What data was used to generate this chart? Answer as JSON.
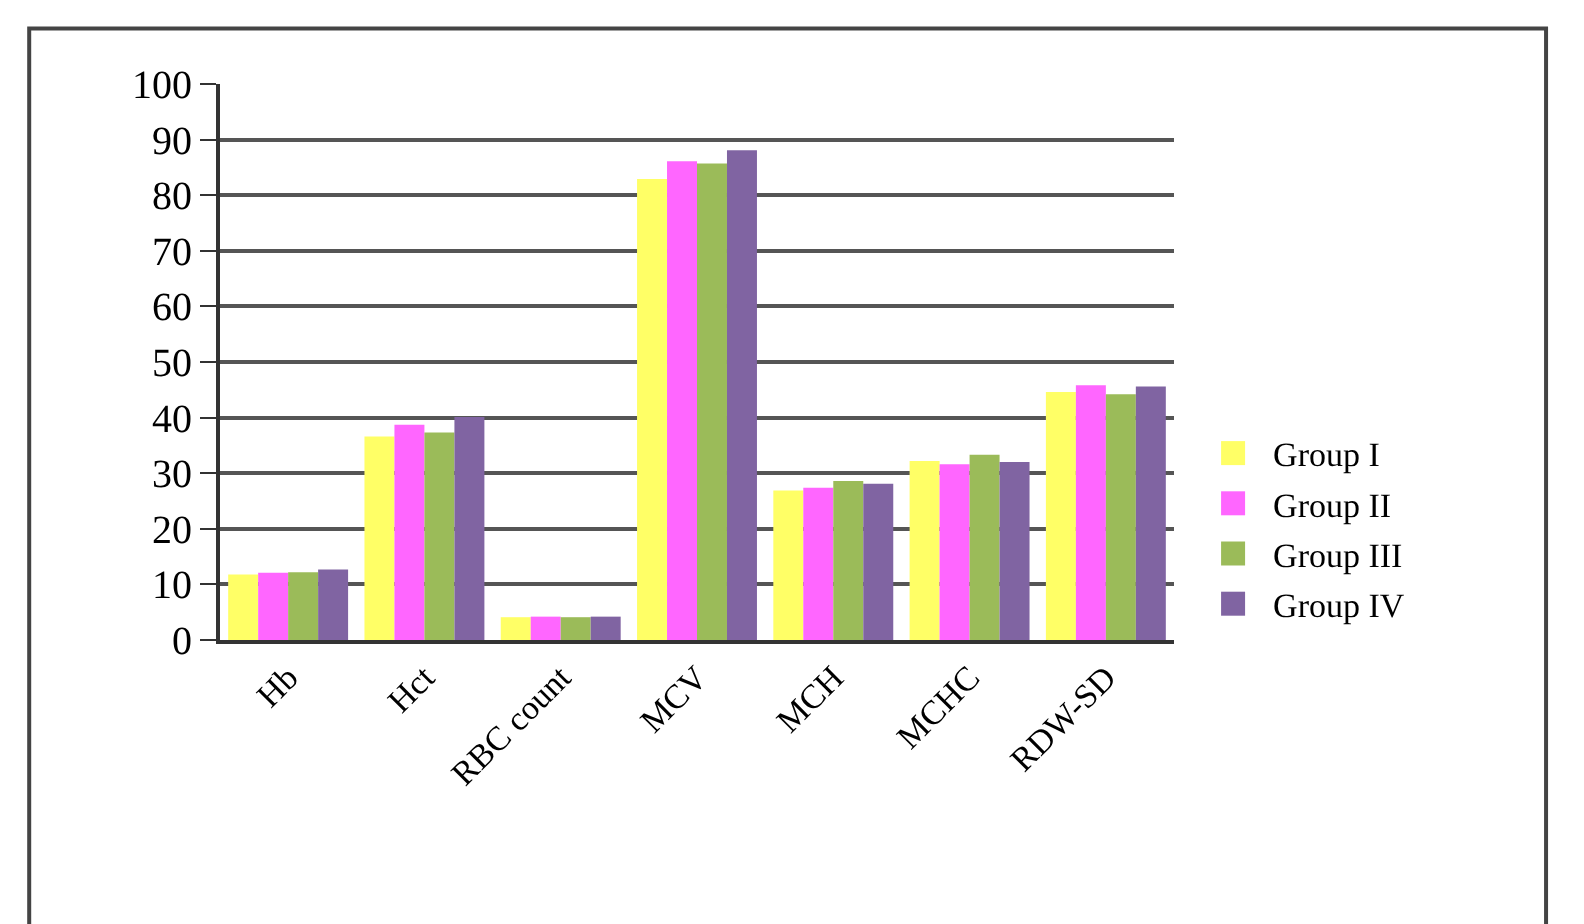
{
  "chart_data": {
    "type": "bar",
    "categories": [
      "Hb",
      "Hct",
      "RBC count",
      "MCV",
      "MCH",
      "MCHC",
      "RDW-SD"
    ],
    "series": [
      {
        "name": "Group I",
        "color": "#ffff66",
        "values": [
          11.8,
          36.6,
          4.1,
          82.9,
          26.9,
          32.2,
          44.6
        ]
      },
      {
        "name": "Group II",
        "color": "#ff66ff",
        "values": [
          12.1,
          38.7,
          4.2,
          86.1,
          27.4,
          31.6,
          45.8
        ]
      },
      {
        "name": "Group III",
        "color": "#9bbb59",
        "values": [
          12.2,
          37.3,
          4.1,
          85.7,
          28.6,
          33.3,
          44.2
        ]
      },
      {
        "name": "Group IV",
        "color": "#8064a2",
        "values": [
          12.7,
          40.1,
          4.2,
          88.1,
          28.1,
          32.0,
          45.6
        ]
      }
    ],
    "ylim": [
      0,
      100
    ],
    "yticks": [
      0,
      10,
      20,
      30,
      40,
      50,
      60,
      70,
      80,
      90,
      100
    ],
    "grid": "y",
    "legend": "bottom right"
  }
}
